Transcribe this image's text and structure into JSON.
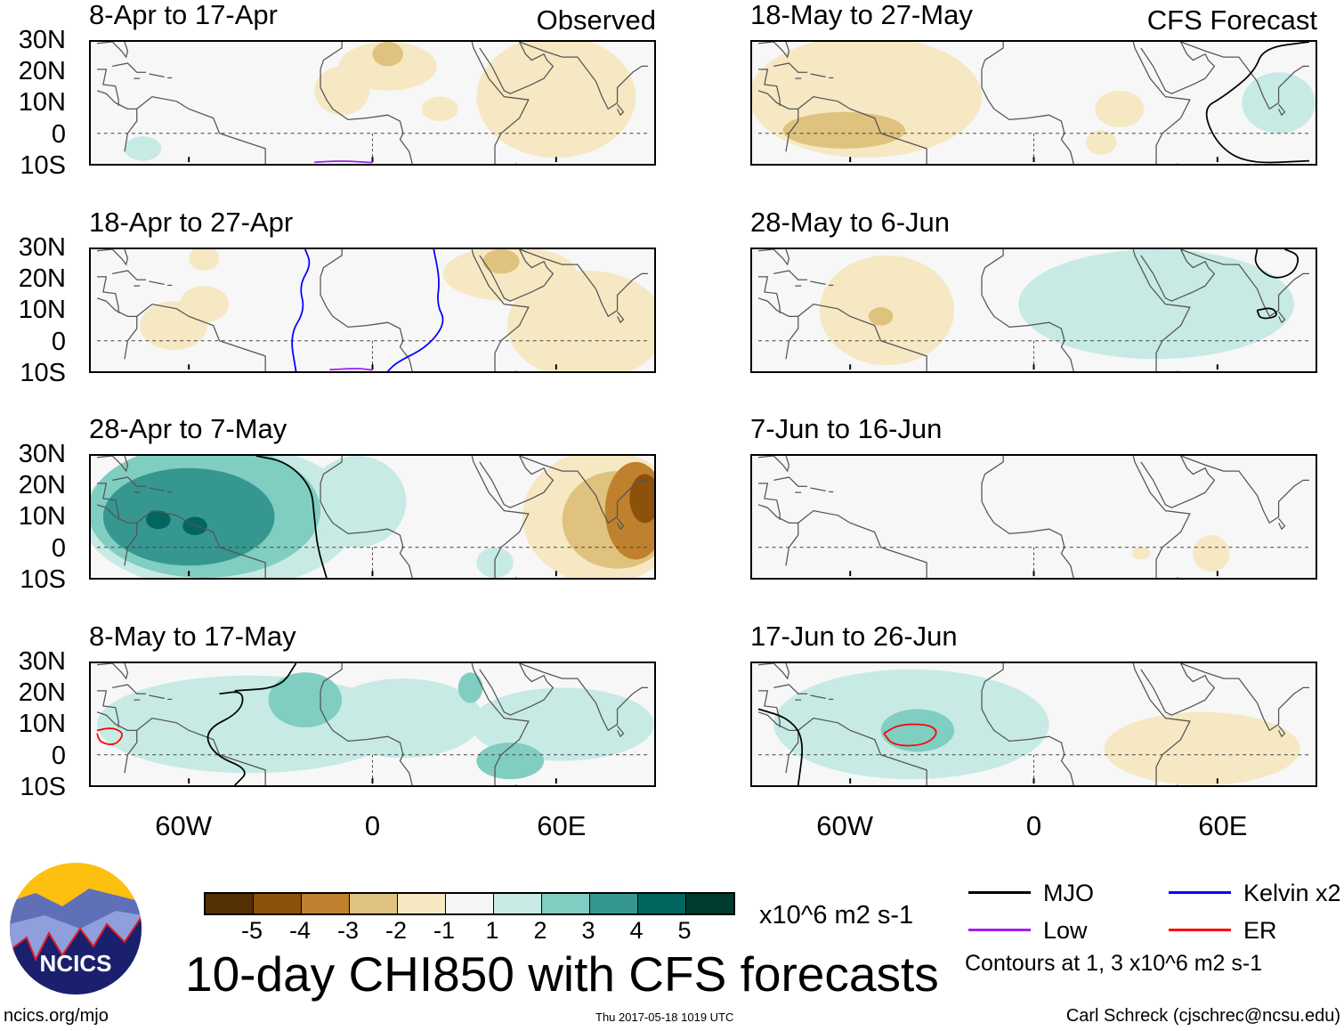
{
  "column_labels": {
    "left": "Observed",
    "right": "CFS Forecast"
  },
  "lat_ticks": [
    "30N",
    "20N",
    "10N",
    "0",
    "10S"
  ],
  "lon_ticks": [
    "60W",
    "0",
    "60E"
  ],
  "colorbar": {
    "labels": [
      "-5",
      "-4",
      "-3",
      "-2",
      "-1",
      "1",
      "2",
      "3",
      "4",
      "5"
    ],
    "colors": [
      "#543005",
      "#8c510a",
      "#bf812d",
      "#dfc27d",
      "#f6e8c3",
      "#f5f5f5",
      "#c7eae5",
      "#80cdc1",
      "#35978f",
      "#01665e",
      "#003c30"
    ],
    "units": "x10^6 m2 s-1"
  },
  "title": "10-day CHI850 with CFS forecasts",
  "legend": {
    "items": [
      {
        "label": "MJO",
        "color": "#000000"
      },
      {
        "label": "Kelvin x2",
        "color": "#0000ff"
      },
      {
        "label": "Low",
        "color": "#a020f0"
      },
      {
        "label": "ER",
        "color": "#ff0000"
      }
    ],
    "note": "Contours at 1, 3 x10^6 m2 s-1"
  },
  "logo_text": "NCICS",
  "footer": {
    "url": "ncics.org/mjo",
    "timestamp": "Thu 2017-05-18 1019 UTC",
    "author": "Carl Schreck (cjschrec@ncsu.edu)"
  },
  "chart_data": {
    "type": "map",
    "lon_range": [
      -90,
      90
    ],
    "lat_range": [
      -10,
      30
    ],
    "panels": [
      {
        "title": "8-Apr to 17-Apr",
        "kind": "observed",
        "anomalies": [
          {
            "lon": -10,
            "lat": 14,
            "rlon": 9,
            "rlat": 8,
            "level": -1
          },
          {
            "lon": 5,
            "lat": 22,
            "rlon": 16,
            "rlat": 8,
            "level": -1
          },
          {
            "lon": 5,
            "lat": 26,
            "rlon": 5,
            "rlat": 4,
            "level": -2
          },
          {
            "lon": 22,
            "lat": 8,
            "rlon": 6,
            "rlat": 4,
            "level": -1
          },
          {
            "lon": 60,
            "lat": 12,
            "rlon": 26,
            "rlat": 20,
            "level": -1
          },
          {
            "lon": -75,
            "lat": -5,
            "rlon": 6,
            "rlat": 4,
            "level": 1
          }
        ],
        "contours": [
          {
            "wave": "Low",
            "points": [
              [
                -19,
                -9.5
              ],
              [
                -10,
                -9
              ],
              [
                0,
                -9.6
              ]
            ]
          }
        ]
      },
      {
        "title": "18-Apr to 27-Apr",
        "kind": "observed",
        "anomalies": [
          {
            "lon": -65,
            "lat": 5,
            "rlon": 11,
            "rlat": 8,
            "level": -1
          },
          {
            "lon": -55,
            "lat": 12,
            "rlon": 8,
            "rlat": 6,
            "level": -1
          },
          {
            "lon": -55,
            "lat": 27,
            "rlon": 5,
            "rlat": 4,
            "level": -1
          },
          {
            "lon": 70,
            "lat": 5,
            "rlon": 26,
            "rlat": 18,
            "level": -1
          },
          {
            "lon": 45,
            "lat": 22,
            "rlon": 22,
            "rlat": 9,
            "level": -1
          },
          {
            "lon": 42,
            "lat": 26,
            "rlon": 6,
            "rlat": 4,
            "level": -2
          }
        ],
        "contours": [
          {
            "wave": "Kelvin x2",
            "points": [
              [
                -22,
                30
              ],
              [
                -20,
                25
              ],
              [
                -24,
                18
              ],
              [
                -22,
                10
              ],
              [
                -27,
                2
              ],
              [
                -25,
                -10
              ]
            ]
          },
          {
            "wave": "Kelvin x2",
            "points": [
              [
                20,
                30
              ],
              [
                22,
                20
              ],
              [
                21,
                12
              ],
              [
                24,
                6
              ],
              [
                18,
                -2
              ],
              [
                8,
                -7
              ],
              [
                5,
                -10
              ]
            ]
          },
          {
            "wave": "Low",
            "points": [
              [
                -14,
                -9.5
              ],
              [
                -5,
                -9
              ],
              [
                0,
                -9.6
              ]
            ]
          }
        ]
      },
      {
        "title": "28-Apr to 7-May",
        "kind": "observed",
        "anomalies": [
          {
            "lon": -50,
            "lat": 10,
            "rlon": 45,
            "rlat": 24,
            "level": 1
          },
          {
            "lon": -55,
            "lat": 12,
            "rlon": 38,
            "rlat": 22,
            "level": 2
          },
          {
            "lon": -60,
            "lat": 10,
            "rlon": 28,
            "rlat": 16,
            "level": 3
          },
          {
            "lon": -70,
            "lat": 9,
            "rlon": 4,
            "rlat": 3,
            "level": 4
          },
          {
            "lon": -58,
            "lat": 7,
            "rlon": 4,
            "rlat": 3,
            "level": 4
          },
          {
            "lon": -5,
            "lat": 15,
            "rlon": 16,
            "rlat": 15,
            "level": 1
          },
          {
            "lon": 40,
            "lat": -5,
            "rlon": 6,
            "rlat": 5,
            "level": 1
          },
          {
            "lon": 75,
            "lat": 10,
            "rlon": 26,
            "rlat": 22,
            "level": -1
          },
          {
            "lon": 80,
            "lat": 9,
            "rlon": 18,
            "rlat": 16,
            "level": -2
          },
          {
            "lon": 86,
            "lat": 12,
            "rlon": 10,
            "rlat": 16,
            "level": -3
          },
          {
            "lon": 89,
            "lat": 16,
            "rlon": 5,
            "rlat": 8,
            "level": -4
          }
        ],
        "contours": [
          {
            "wave": "MJO",
            "points": [
              [
                -38,
                30
              ],
              [
                -28,
                28
              ],
              [
                -20,
                20
              ],
              [
                -19,
                10
              ],
              [
                -18,
                0
              ],
              [
                -15,
                -10
              ]
            ]
          }
        ]
      },
      {
        "title": "8-May to 17-May",
        "kind": "observed",
        "anomalies": [
          {
            "lon": -40,
            "lat": 10,
            "rlon": 50,
            "rlat": 16,
            "level": 1
          },
          {
            "lon": -22,
            "lat": 18,
            "rlon": 12,
            "rlat": 9,
            "level": 2
          },
          {
            "lon": 10,
            "lat": 12,
            "rlon": 26,
            "rlat": 13,
            "level": 1
          },
          {
            "lon": 32,
            "lat": 22,
            "rlon": 4,
            "rlat": 5,
            "level": 2
          },
          {
            "lon": 45,
            "lat": -2,
            "rlon": 11,
            "rlat": 6,
            "level": 2
          },
          {
            "lon": 62,
            "lat": 10,
            "rlon": 30,
            "rlat": 12,
            "level": 1
          }
        ],
        "contours": [
          {
            "wave": "MJO",
            "points": [
              [
                -50,
                20
              ],
              [
                -42,
                21
              ],
              [
                -43,
                14
              ],
              [
                -55,
                8
              ],
              [
                -52,
                0
              ],
              [
                -40,
                -5
              ],
              [
                -45,
                -10
              ]
            ]
          },
          {
            "wave": "MJO",
            "points": [
              [
                -25,
                30
              ],
              [
                -30,
                22
              ],
              [
                -45,
                21
              ]
            ]
          },
          {
            "wave": "ER",
            "points": [
              [
                -90,
                8
              ],
              [
                -85,
                9
              ],
              [
                -81,
                7
              ],
              [
                -84,
                3
              ],
              [
                -89,
                4
              ],
              [
                -90,
                7
              ]
            ]
          }
        ]
      },
      {
        "title": "18-May to 27-May",
        "kind": "forecast",
        "anomalies": [
          {
            "lon": -55,
            "lat": 12,
            "rlon": 38,
            "rlat": 20,
            "level": -1
          },
          {
            "lon": -62,
            "lat": 1,
            "rlon": 20,
            "rlat": 6,
            "level": -2
          },
          {
            "lon": 28,
            "lat": 8,
            "rlon": 8,
            "rlat": 6,
            "level": -1
          },
          {
            "lon": 22,
            "lat": -3,
            "rlon": 5,
            "rlat": 4,
            "level": -1
          },
          {
            "lon": 80,
            "lat": 10,
            "rlon": 12,
            "rlat": 10,
            "level": 1
          }
        ],
        "contours": [
          {
            "wave": "MJO",
            "points": [
              [
                90,
                30
              ],
              [
                75,
                28
              ],
              [
                72,
                20
              ],
              [
                62,
                12
              ],
              [
                55,
                8
              ],
              [
                60,
                -4
              ],
              [
                70,
                -10
              ],
              [
                90,
                -9
              ]
            ]
          }
        ]
      },
      {
        "title": "28-May to 6-Jun",
        "kind": "forecast",
        "anomalies": [
          {
            "lon": -48,
            "lat": 10,
            "rlon": 22,
            "rlat": 18,
            "level": -1
          },
          {
            "lon": -50,
            "lat": 8,
            "rlon": 4,
            "rlat": 3,
            "level": -2
          },
          {
            "lon": 40,
            "lat": 12,
            "rlon": 45,
            "rlat": 18,
            "level": 1
          }
        ],
        "contours": [
          {
            "wave": "MJO",
            "points": [
              [
                73,
                30
              ],
              [
                72,
                25
              ],
              [
                78,
                20
              ],
              [
                85,
                22
              ],
              [
                87,
                28
              ],
              [
                82,
                30
              ]
            ]
          },
          {
            "wave": "MJO",
            "points": [
              [
                73,
                10
              ],
              [
                78,
                11
              ],
              [
                80,
                8
              ],
              [
                74,
                7
              ],
              [
                73,
                10
              ]
            ]
          }
        ]
      },
      {
        "title": "7-Jun to 16-Jun",
        "kind": "forecast",
        "anomalies": [
          {
            "lon": 58,
            "lat": -2,
            "rlon": 6,
            "rlat": 6,
            "level": -1
          },
          {
            "lon": 35,
            "lat": -2,
            "rlon": 3,
            "rlat": 2,
            "level": -1
          }
        ],
        "contours": []
      },
      {
        "title": "17-Jun to 26-Jun",
        "kind": "forecast",
        "anomalies": [
          {
            "lon": -40,
            "lat": 10,
            "rlon": 45,
            "rlat": 18,
            "level": 1
          },
          {
            "lon": -38,
            "lat": 8,
            "rlon": 12,
            "rlat": 7,
            "level": 2
          },
          {
            "lon": 55,
            "lat": 2,
            "rlon": 32,
            "rlat": 12,
            "level": -1
          }
        ],
        "contours": [
          {
            "wave": "ER",
            "points": [
              [
                -49,
                7
              ],
              [
                -44,
                10
              ],
              [
                -34,
                10
              ],
              [
                -31,
                7
              ],
              [
                -36,
                3
              ],
              [
                -46,
                3
              ],
              [
                -49,
                7
              ]
            ]
          },
          {
            "wave": "MJO",
            "points": [
              [
                -90,
                15
              ],
              [
                -80,
                12
              ],
              [
                -75,
                5
              ],
              [
                -77,
                -10
              ]
            ]
          }
        ]
      }
    ]
  }
}
